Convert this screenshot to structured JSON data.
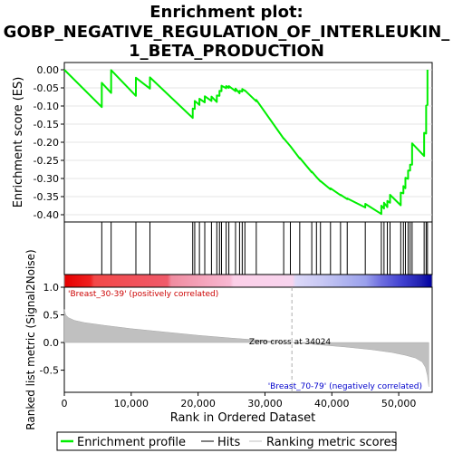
{
  "chart_data": {
    "type": "line",
    "title_lines": [
      "Enrichment plot:",
      "GOBP_NEGATIVE_REGULATION_OF_INTERLEUKIN_",
      "1_BETA_PRODUCTION"
    ],
    "xlabel": "Rank in Ordered Dataset",
    "ylabel_top": "Enrichment score (ES)",
    "ylabel_bottom": "Ranked list metric (Signal2Noise)",
    "xlim": [
      0,
      55000
    ],
    "es_ylim": [
      -0.42,
      0.02
    ],
    "metric_ylim": [
      -0.9,
      1.0
    ],
    "x_ticks": [
      0,
      10000,
      20000,
      30000,
      40000,
      50000
    ],
    "x_tick_labels": [
      "0",
      "10,000",
      "20,000",
      "30,000",
      "40,000",
      "50,000"
    ],
    "es_ticks": [
      0.0,
      -0.05,
      -0.1,
      -0.15,
      -0.2,
      -0.25,
      -0.3,
      -0.35,
      -0.4
    ],
    "es_tick_labels": [
      "0.00",
      "-0.05",
      "-0.10",
      "-0.15",
      "-0.20",
      "-0.25",
      "-0.30",
      "-0.35",
      "-0.40"
    ],
    "metric_ticks": [
      1.0,
      0.5,
      0.0,
      -0.5
    ],
    "metric_tick_labels": [
      "1.0",
      "0.5",
      "0.0",
      "-0.5"
    ],
    "hits": [
      5600,
      7000,
      10700,
      12800,
      19200,
      19500,
      20200,
      21000,
      22000,
      22800,
      23200,
      23500,
      24200,
      24600,
      25600,
      26200,
      26600,
      27000,
      28700,
      32800,
      33800,
      35200,
      37000,
      37700,
      38300,
      39800,
      41300,
      42300,
      45000,
      47400,
      47800,
      48300,
      48700,
      50300,
      50700,
      51000,
      51400,
      51700,
      52000,
      53800,
      54100,
      54300
    ],
    "series": [
      {
        "name": "Enrichment profile",
        "color": "#00ee00",
        "x": [
          0,
          5600,
          5600,
          7000,
          7000,
          10700,
          10700,
          12800,
          12800,
          19200,
          19200,
          19500,
          19500,
          20200,
          20200,
          21000,
          21000,
          22000,
          22000,
          22800,
          22800,
          23200,
          23200,
          23500,
          23500,
          24200,
          24200,
          24600,
          24600,
          25600,
          25600,
          26200,
          26200,
          26600,
          26600,
          27000,
          27000,
          28700,
          28700,
          32800,
          32800,
          33800,
          33800,
          35200,
          35200,
          37000,
          37000,
          37700,
          37700,
          38300,
          38300,
          39800,
          39800,
          41300,
          41300,
          42300,
          42300,
          45000,
          45000,
          47400,
          47400,
          47800,
          47800,
          48300,
          48300,
          48700,
          48700,
          50300,
          50300,
          50700,
          50700,
          51000,
          51000,
          51400,
          51400,
          51700,
          51700,
          52000,
          52000,
          53800,
          53800,
          54100,
          54100,
          54300,
          54300
        ],
        "values": [
          0.0,
          -0.103,
          -0.036,
          -0.064,
          -0.001,
          -0.072,
          -0.022,
          -0.052,
          -0.021,
          -0.133,
          -0.107,
          -0.108,
          -0.086,
          -0.097,
          -0.08,
          -0.09,
          -0.073,
          -0.086,
          -0.074,
          -0.089,
          -0.071,
          -0.072,
          -0.058,
          -0.059,
          -0.044,
          -0.051,
          -0.045,
          -0.05,
          -0.045,
          -0.059,
          -0.052,
          -0.065,
          -0.058,
          -0.06,
          -0.053,
          -0.058,
          -0.057,
          -0.087,
          -0.083,
          -0.19,
          -0.189,
          -0.211,
          -0.211,
          -0.245,
          -0.243,
          -0.283,
          -0.281,
          -0.296,
          -0.296,
          -0.308,
          -0.307,
          -0.33,
          -0.327,
          -0.346,
          -0.345,
          -0.357,
          -0.355,
          -0.38,
          -0.37,
          -0.398,
          -0.375,
          -0.383,
          -0.367,
          -0.379,
          -0.362,
          -0.367,
          -0.345,
          -0.374,
          -0.339,
          -0.341,
          -0.321,
          -0.327,
          -0.298,
          -0.301,
          -0.278,
          -0.278,
          -0.262,
          -0.262,
          -0.203,
          -0.238,
          -0.174,
          -0.176,
          -0.099,
          -0.097,
          0.0
        ]
      },
      {
        "name": "Hits",
        "color": "#000000"
      },
      {
        "name": "Ranking metric scores",
        "color": "#c0c0c0",
        "x": [
          0,
          200,
          600,
          1500,
          3000,
          6000,
          10000,
          15000,
          20000,
          25000,
          30000,
          34024,
          38000,
          42000,
          46000,
          49000,
          51000,
          52500,
          53500,
          54000,
          54300,
          54500
        ],
        "values": [
          0.6,
          0.5,
          0.45,
          0.4,
          0.36,
          0.31,
          0.25,
          0.19,
          0.13,
          0.08,
          0.035,
          0.0,
          -0.04,
          -0.08,
          -0.13,
          -0.18,
          -0.23,
          -0.28,
          -0.35,
          -0.45,
          -0.6,
          -0.8
        ]
      }
    ],
    "annotations": {
      "pos_label": "'Breast_30-39' (positively correlated)",
      "neg_label": "'Breast_70-79' (negatively correlated)",
      "zero_cross": "Zero cross at 34024",
      "zero_cross_x": 34024
    },
    "legend": {
      "placement": "bottom",
      "entries": [
        "Enrichment profile",
        "Hits",
        "Ranking metric scores"
      ]
    },
    "colors": {
      "es_line": "#00ee00",
      "pos_label": "#cc0000",
      "neg_label": "#0000cc",
      "metric_fill": "#c0c0c0"
    }
  }
}
